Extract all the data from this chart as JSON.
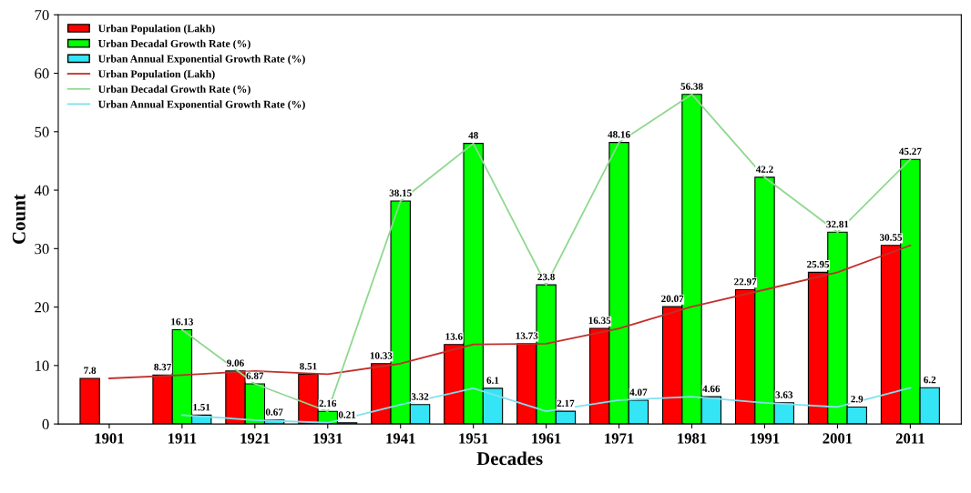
{
  "chart_data": {
    "type": "bar",
    "xlabel": "Decades",
    "ylabel": "Count",
    "categories": [
      "1901",
      "1911",
      "1921",
      "1931",
      "1941",
      "1951",
      "1961",
      "1971",
      "1981",
      "1991",
      "2001",
      "2011"
    ],
    "series": [
      {
        "name": "Urban Population (Lakh)",
        "color": "#ff0000",
        "values": [
          7.8,
          8.37,
          9.06,
          8.51,
          10.33,
          13.6,
          13.73,
          16.35,
          20.07,
          22.97,
          25.95,
          30.55
        ],
        "value_labels": [
          "7.8",
          "8.37",
          "9.06",
          "8.51",
          "10.33",
          "13.6",
          "13.73",
          "16.35",
          "20.07",
          "22.97",
          "25.95",
          "30.55"
        ]
      },
      {
        "name": "Urban Decadal Growth Rate (%)",
        "color": "#00ff00",
        "values": [
          null,
          16.13,
          6.87,
          2.16,
          38.15,
          48,
          23.8,
          48.16,
          56.38,
          42.2,
          32.81,
          45.27
        ],
        "value_labels": [
          null,
          "16.13",
          "6.87",
          "2.16",
          "38.15",
          "48",
          "23.8",
          "48.16",
          "56.38",
          "42.2",
          "32.81",
          "45.27"
        ]
      },
      {
        "name": "Urban Annual Exponential Growth Rate (%)",
        "color": "#33e5f5",
        "values": [
          null,
          1.51,
          0.67,
          0.21,
          3.32,
          6.1,
          2.17,
          4.07,
          4.66,
          3.63,
          2.9,
          6.2
        ],
        "value_labels": [
          null,
          "1.51",
          "0.67",
          "0.21",
          "3.32",
          "6.1",
          "2.17",
          "4.07",
          "4.66",
          "3.63",
          "2.9",
          "6.2"
        ]
      },
      {
        "name": "Urban Population (Lakh)",
        "type": "line",
        "color": "#c0302a",
        "values": [
          7.8,
          8.37,
          9.06,
          8.51,
          10.33,
          13.6,
          13.73,
          16.35,
          20.07,
          22.97,
          25.95,
          30.55
        ]
      },
      {
        "name": "Urban Decadal Growth Rate (%)",
        "type": "line",
        "color": "#8fd88f",
        "values": [
          null,
          16.13,
          6.87,
          2.16,
          38.15,
          48,
          23.8,
          48.16,
          56.38,
          42.2,
          32.81,
          45.27
        ]
      },
      {
        "name": "Urban Annual Exponential Growth Rate (%)",
        "type": "line",
        "color": "#80e0f0",
        "values": [
          null,
          1.51,
          0.67,
          0.21,
          3.32,
          6.1,
          2.17,
          4.07,
          4.66,
          3.63,
          2.9,
          6.2
        ]
      }
    ],
    "ylim": [
      0,
      70
    ],
    "yticks": [
      0,
      10,
      20,
      30,
      40,
      50,
      60,
      70
    ],
    "grid": false,
    "legend": "top left"
  }
}
